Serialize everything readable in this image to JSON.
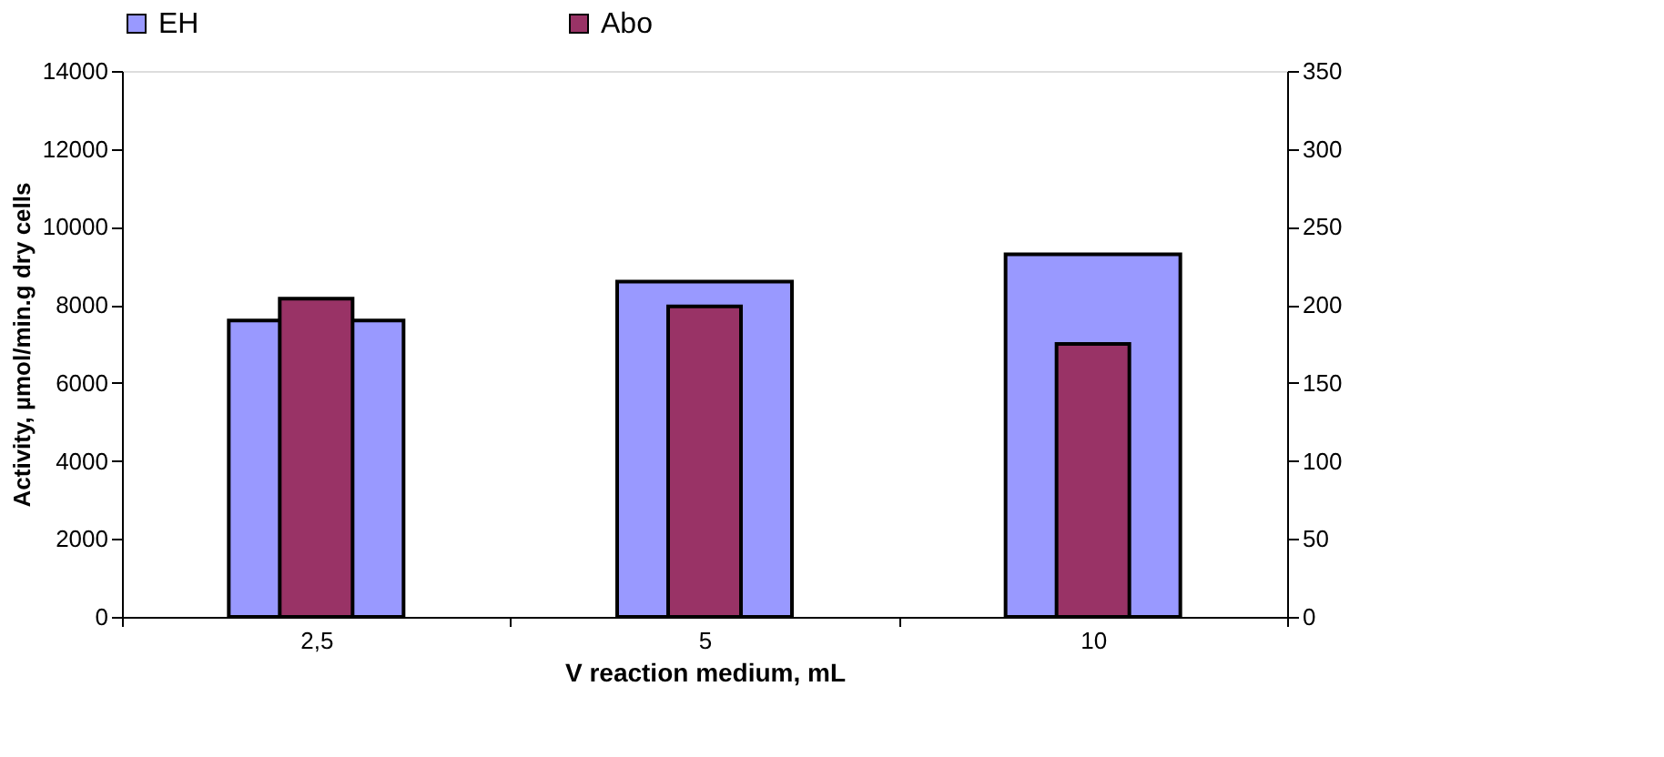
{
  "chart_data": {
    "type": "bar",
    "xlabel": "V reaction medium, mL",
    "ylabel": "Activity, µmol/min.g dry cells",
    "categories": [
      "2,5",
      "5",
      "10"
    ],
    "series": [
      {
        "name": "EH",
        "color": "#9999ff",
        "values": [
          7600,
          8600,
          9300
        ]
      },
      {
        "name": "Abo",
        "color": "#993366",
        "values": [
          204,
          199,
          175
        ],
        "axis": "y2"
      }
    ],
    "ylim": [
      0,
      14000
    ],
    "yticks": [
      0,
      2000,
      4000,
      6000,
      8000,
      10000,
      12000,
      14000
    ],
    "y2lim": [
      0,
      350
    ],
    "y2ticks": [
      0,
      50,
      100,
      150,
      200,
      250,
      300,
      350
    ],
    "grid": false,
    "legend": "top"
  }
}
